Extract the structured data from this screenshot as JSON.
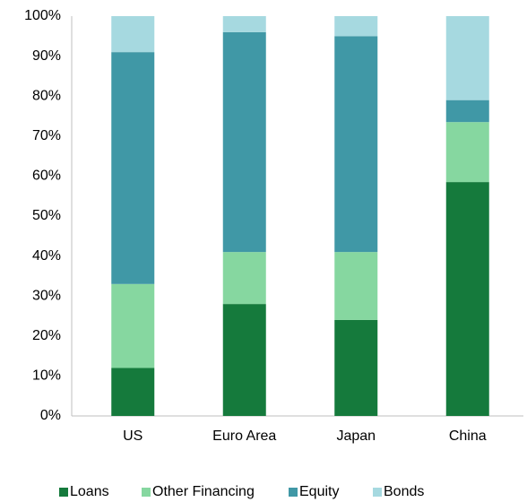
{
  "chart_data": {
    "type": "stacked_bar",
    "categories": [
      "US",
      "Euro Area",
      "Japan",
      "China"
    ],
    "series": [
      {
        "name": "Loans",
        "color": "#157a3c",
        "values": [
          12,
          28,
          24,
          58.5
        ]
      },
      {
        "name": "Other Financing",
        "color": "#86d7a0",
        "values": [
          21,
          13,
          17,
          15
        ]
      },
      {
        "name": "Equity",
        "color": "#4098a6",
        "values": [
          58,
          55,
          54,
          5.5
        ]
      },
      {
        "name": "Bonds",
        "color": "#a6d9e0",
        "values": [
          9,
          4,
          5,
          21
        ]
      }
    ],
    "ylim": [
      0,
      100
    ],
    "yticks": [
      {
        "value": 0,
        "label": "0%"
      },
      {
        "value": 10,
        "label": "10%"
      },
      {
        "value": 20,
        "label": "20%"
      },
      {
        "value": 30,
        "label": "30%"
      },
      {
        "value": 40,
        "label": "40%"
      },
      {
        "value": 50,
        "label": "50%"
      },
      {
        "value": 60,
        "label": "60%"
      },
      {
        "value": 70,
        "label": "70%"
      },
      {
        "value": 80,
        "label": "80%"
      },
      {
        "value": 90,
        "label": "90%"
      },
      {
        "value": 100,
        "label": "100%"
      }
    ],
    "grid": false,
    "legend": "bottom"
  }
}
